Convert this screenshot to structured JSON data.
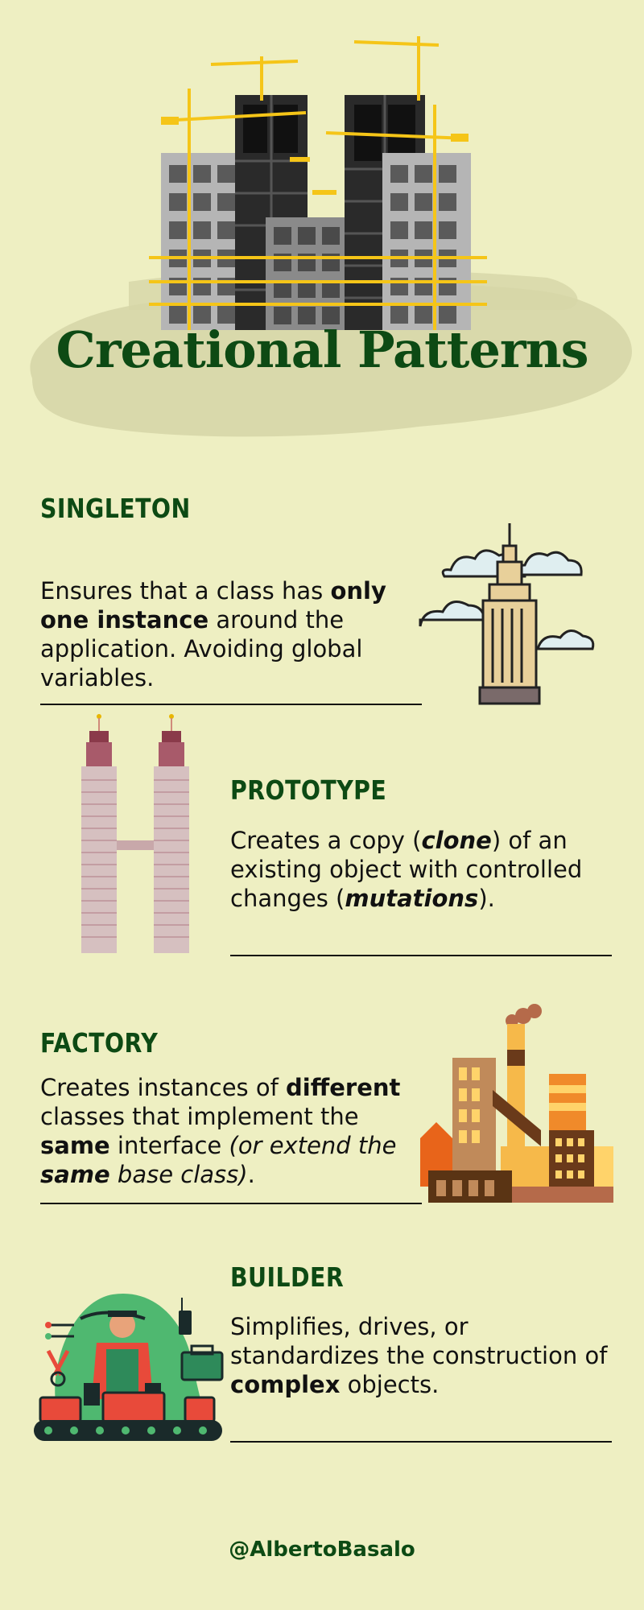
{
  "header": {
    "title": "Creational Patterns"
  },
  "sections": [
    {
      "title": "SINGLETON",
      "desc": [
        {
          "t": "Ensures that a class has "
        },
        {
          "t": "only one instance",
          "b": true
        },
        {
          "t": " around the application. Avoiding global variables."
        }
      ]
    },
    {
      "title": "PROTOTYPE",
      "desc": [
        {
          "t": "Creates a copy ("
        },
        {
          "t": "clone",
          "b": true,
          "i": true
        },
        {
          "t": ") of an existing object with controlled changes ("
        },
        {
          "t": "mutations",
          "b": true,
          "i": true
        },
        {
          "t": ")."
        }
      ]
    },
    {
      "title": "FACTORY",
      "desc": [
        {
          "t": "Creates instances of "
        },
        {
          "t": "different",
          "b": true
        },
        {
          "t": " classes that implement the "
        },
        {
          "t": "same",
          "b": true
        },
        {
          "t": " interface "
        },
        {
          "t": "(or extend the ",
          "i": true
        },
        {
          "t": "same",
          "b": true,
          "i": true
        },
        {
          "t": " base class)",
          "i": true
        },
        {
          "t": "."
        }
      ]
    },
    {
      "title": "BUILDER",
      "desc": [
        {
          "t": "Simplifies, drives, or standardizes the construction of "
        },
        {
          "t": "complex",
          "b": true
        },
        {
          "t": " objects."
        }
      ]
    }
  ],
  "footer": {
    "handle": "@AlbertoBasalo"
  },
  "icons": {
    "hero": "construction-site-icon",
    "singleton": "skyscraper-clouds-icon",
    "prototype": "twin-towers-icon",
    "factory": "factory-icon",
    "builder": "worker-conveyor-icon"
  },
  "colors": {
    "background": "#eeefc2",
    "title_green": "#0d4a14",
    "crane_yellow": "#f5c518"
  }
}
